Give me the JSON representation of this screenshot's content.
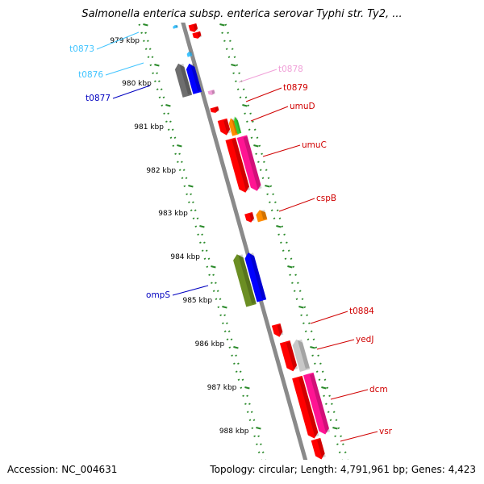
{
  "header": {
    "title": "Salmonella enterica subsp. enterica serovar Typhi str. Ty2, ..."
  },
  "footer": {
    "accession": "Accession: NC_004631",
    "summary": "Topology: circular; Length: 4,791,961 bp; Genes: 4,423"
  },
  "colors": {
    "backbone": "#8a8a8a",
    "ticks": "#2a8a2a",
    "red": "#ff0000",
    "blue": "#0000ff",
    "gray": "#6e6e6e",
    "light_gray": "#c8c8c8",
    "magenta": "#ff1493",
    "orange": "#ff8c00",
    "green": "#33cc33",
    "olive": "#6b8e23",
    "cyan": "#40c4ff",
    "pink": "#f0a0d8"
  },
  "kbp_labels": [
    "979 kbp",
    "980 kbp",
    "981 kbp",
    "982 kbp",
    "983 kbp",
    "984 kbp",
    "985 kbp",
    "986 kbp",
    "987 kbp",
    "988 kbp"
  ],
  "genes": [
    {
      "label": "t0873",
      "color": "#40c4ff",
      "label_color": "#40c4ff",
      "strand": "minus"
    },
    {
      "label": "t0876",
      "color": "#40c4ff",
      "label_color": "#40c4ff",
      "strand": "minus"
    },
    {
      "label": "t0877",
      "color": "#0000ff",
      "label_color": "#0000c0",
      "strand": "minus"
    },
    {
      "label": "t0878",
      "color": "#f0a0d8",
      "label_color": "#f0a0d8",
      "strand": "plus"
    },
    {
      "label": "t0879",
      "color": "#ff0000",
      "label_color": "#d00000",
      "strand": "plus"
    },
    {
      "label": "umuD",
      "color": "#ff8c00",
      "label_color": "#d00000",
      "strand": "plus"
    },
    {
      "label": "umuC",
      "color": "#ff1493",
      "label_color": "#d00000",
      "strand": "plus"
    },
    {
      "label": "cspB",
      "color": "#ff8c00",
      "label_color": "#d00000",
      "strand": "plus"
    },
    {
      "label": "ompS",
      "color": "#0000ff",
      "label_color": "#0000c0",
      "strand": "minus"
    },
    {
      "label": "t0884",
      "color": "#ff0000",
      "label_color": "#d00000",
      "strand": "plus"
    },
    {
      "label": "yedJ",
      "color": "#c8c8c8",
      "label_color": "#d00000",
      "strand": "plus"
    },
    {
      "label": "dcm",
      "color": "#ff1493",
      "label_color": "#d00000",
      "strand": "plus"
    },
    {
      "label": "vsr",
      "color": "#ff1493",
      "label_color": "#d00000",
      "strand": "plus"
    }
  ]
}
